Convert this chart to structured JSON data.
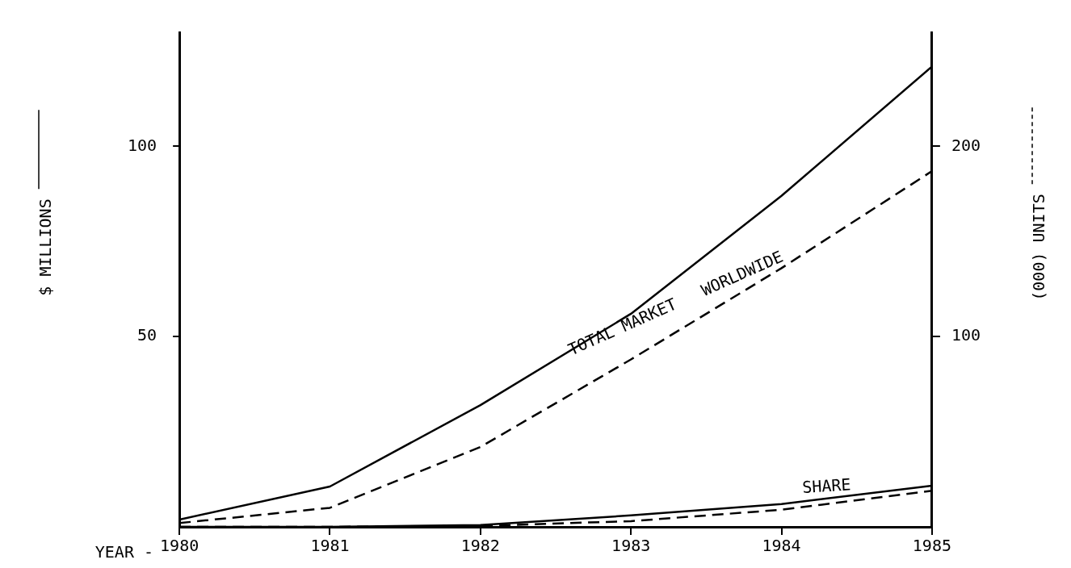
{
  "chart_data": {
    "type": "line",
    "ylabel": "$ MILLIONS",
    "y2label": "(000) UNITS",
    "x": [
      1980,
      1981,
      1982,
      1983,
      1984,
      1985
    ],
    "xlabel": "YEAR -",
    "xlim": [
      1980,
      1985
    ],
    "xticks": [
      1980,
      1981,
      1982,
      1983,
      1984,
      1985
    ],
    "ylim": [
      0,
      130
    ],
    "yticks": [
      50,
      100
    ],
    "y2lim": [
      0,
      260
    ],
    "y2ticks": [
      100,
      200
    ],
    "grid": false,
    "legend": false,
    "marker": "none",
    "series": [
      {
        "color": "#000000",
        "line_style": "solid",
        "values": [
          1.9,
          10.6,
          32,
          56,
          87,
          121
        ]
      },
      {
        "color": "#000000",
        "line_style": "dashed",
        "axis": "y2",
        "values": [
          2,
          10,
          42,
          88,
          136,
          187
        ]
      },
      {
        "color": "#000000",
        "line_style": "solid",
        "values": [
          0,
          0,
          0.5,
          3,
          6,
          10.8
        ]
      },
      {
        "color": "#000000",
        "line_style": "dashed",
        "axis": "y2",
        "values": [
          0,
          0,
          0.5,
          3,
          9,
          19
        ]
      }
    ],
    "annotations": [
      "TOTAL MARKET   WORLDWIDE",
      "SHARE"
    ]
  }
}
